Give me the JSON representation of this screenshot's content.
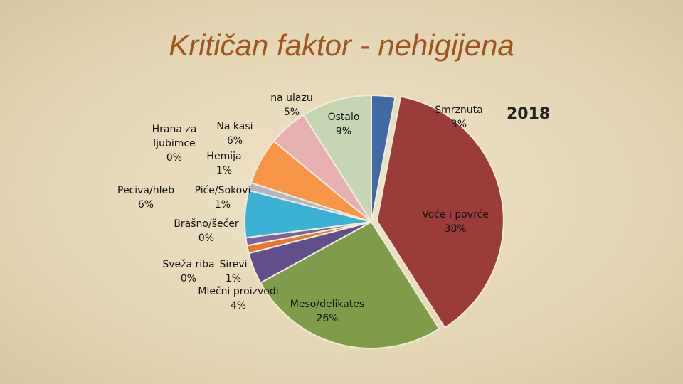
{
  "chart_data": {
    "type": "pie",
    "title": "Kritičan faktor - nehigijena",
    "subtitle": "2018",
    "categories": [
      "Smrznuta",
      "Voće i povrće",
      "Meso/delikates",
      "Mlečni proizvodi",
      "Sirevi",
      "Sveža riba",
      "Brašno/šećer",
      "Piće/Sokovi",
      "Peciva/hleb",
      "Hemija",
      "Hrana za ljubimce",
      "Na kasi",
      "na ulazu",
      "Ostalo"
    ],
    "values": [
      3,
      38,
      26,
      4,
      1,
      0,
      0,
      1,
      6,
      1,
      0,
      6,
      5,
      9
    ],
    "value_labels": [
      "3%",
      "38%",
      "26%",
      "4%",
      "1%",
      "0%",
      "0%",
      "1%",
      "6%",
      "1%",
      "0%",
      "6%",
      "5%",
      "9%"
    ],
    "colors": [
      "#3f6aa6",
      "#9b3b3a",
      "#7f9c4a",
      "#614f8c",
      "#e07a2c",
      "#9a9a9a",
      "#a3c163",
      "#7d62a3",
      "#3bb1d3",
      "#b4b4c8",
      "#c8c8c8",
      "#f79646",
      "#e7b0b0",
      "#c6d6b2"
    ]
  }
}
